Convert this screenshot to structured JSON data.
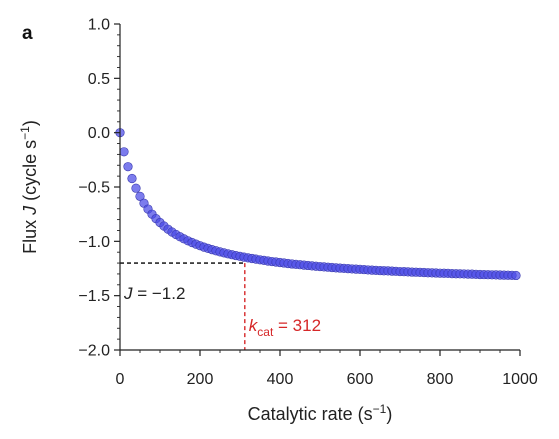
{
  "panel_label": "a",
  "chart_data": {
    "type": "scatter",
    "xlabel": "Catalytic rate (s⁻¹)",
    "ylabel": "Flux J (cycle s⁻¹)",
    "xlim": [
      0,
      1000
    ],
    "ylim": [
      -2.0,
      1.0
    ],
    "x_ticks": [
      0,
      200,
      400,
      600,
      800,
      1000
    ],
    "x_tick_labels": [
      "0",
      "200",
      "400",
      "600",
      "800",
      "1000"
    ],
    "y_ticks": [
      1.0,
      0.5,
      0.0,
      -0.5,
      -1.0,
      -1.5,
      -2.0
    ],
    "y_tick_labels": [
      "1.0",
      "0.5",
      "0.0",
      "−0.5",
      "−1.0",
      "−1.5",
      "−2.0"
    ],
    "grid": false,
    "marker_color": "#4a4ae6",
    "reference_lines": {
      "horizontal": {
        "y": -1.2,
        "color": "#000000",
        "style": "dashed"
      },
      "vertical": {
        "x": 312,
        "color": "#d62728",
        "style": "dashed"
      }
    },
    "annotations": {
      "flux": {
        "variable": "J",
        "text": " = −1.2",
        "color": "#222222"
      },
      "kcat": {
        "variable": "k",
        "subscript": "cat",
        "text": " = 312",
        "color": "#d62728"
      }
    },
    "series": [
      {
        "x": [
          0,
          10,
          20,
          30,
          40,
          50,
          60,
          70,
          80,
          90,
          100,
          110,
          120,
          130,
          140,
          150,
          160,
          170,
          180,
          190,
          200,
          210,
          220,
          230,
          240,
          250,
          260,
          270,
          280,
          290,
          300,
          310,
          320,
          330,
          340,
          350,
          360,
          370,
          380,
          390,
          400,
          410,
          420,
          430,
          440,
          450,
          460,
          470,
          480,
          490,
          500,
          510,
          520,
          530,
          540,
          550,
          560,
          570,
          580,
          590,
          600,
          610,
          620,
          630,
          640,
          650,
          660,
          670,
          680,
          690,
          700,
          710,
          720,
          730,
          740,
          750,
          760,
          770,
          780,
          790,
          800,
          810,
          820,
          830,
          840,
          850,
          860,
          870,
          880,
          890,
          900,
          910,
          920,
          930,
          940,
          950,
          960,
          970,
          980,
          990
        ],
        "y": [
          0.0,
          -0.176,
          -0.313,
          -0.422,
          -0.511,
          -0.586,
          -0.649,
          -0.703,
          -0.75,
          -0.791,
          -0.827,
          -0.859,
          -0.888,
          -0.914,
          -0.937,
          -0.958,
          -0.977,
          -0.995,
          -1.011,
          -1.026,
          -1.04,
          -1.053,
          -1.065,
          -1.076,
          -1.087,
          -1.097,
          -1.106,
          -1.115,
          -1.123,
          -1.131,
          -1.138,
          -1.145,
          -1.152,
          -1.158,
          -1.164,
          -1.17,
          -1.175,
          -1.181,
          -1.186,
          -1.19,
          -1.195,
          -1.199,
          -1.204,
          -1.208,
          -1.212,
          -1.215,
          -1.219,
          -1.222,
          -1.226,
          -1.229,
          -1.232,
          -1.235,
          -1.238,
          -1.241,
          -1.244,
          -1.246,
          -1.249,
          -1.251,
          -1.254,
          -1.256,
          -1.258,
          -1.26,
          -1.263,
          -1.265,
          -1.267,
          -1.269,
          -1.271,
          -1.272,
          -1.274,
          -1.276,
          -1.278,
          -1.279,
          -1.281,
          -1.283,
          -1.284,
          -1.286,
          -1.287,
          -1.289,
          -1.29,
          -1.291,
          -1.293,
          -1.294,
          -1.295,
          -1.297,
          -1.298,
          -1.299,
          -1.3,
          -1.301,
          -1.302,
          -1.304,
          -1.305,
          -1.306,
          -1.307,
          -1.308,
          -1.309,
          -1.31,
          -1.311,
          -1.312,
          -1.313,
          -1.314
        ]
      }
    ]
  }
}
